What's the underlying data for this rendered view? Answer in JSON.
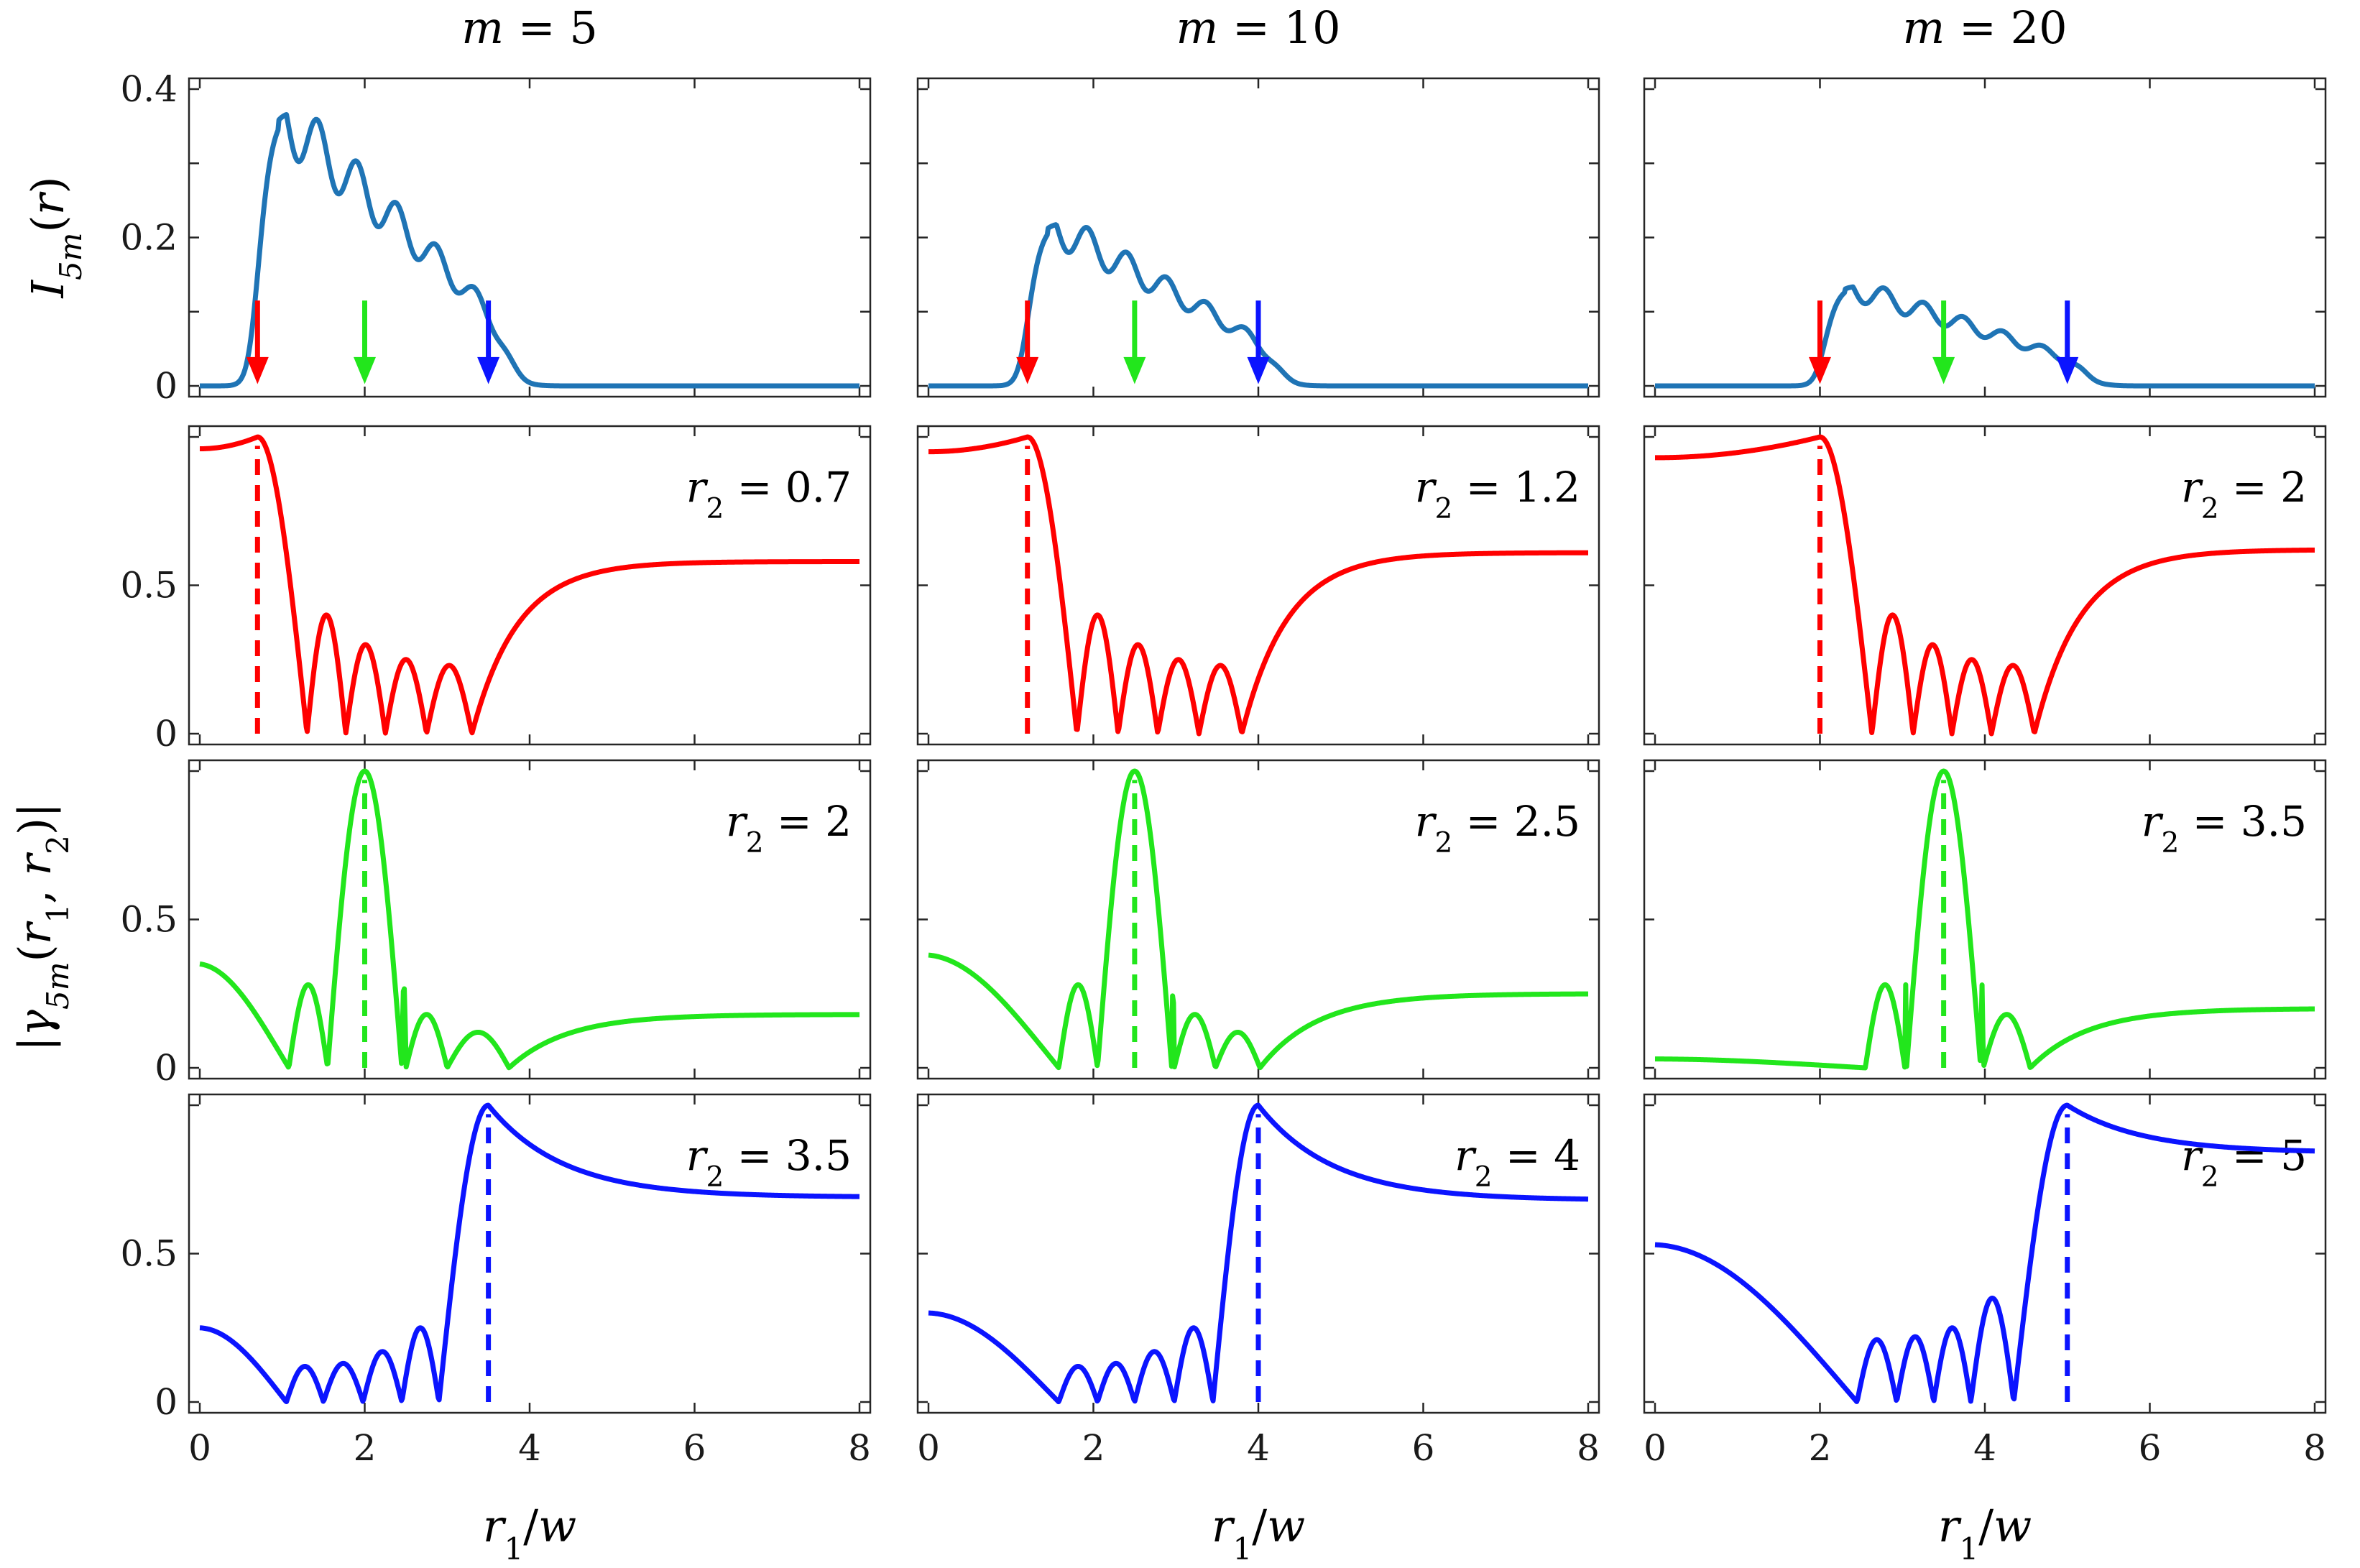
{
  "chart_data": {
    "type": "line",
    "layout": "4 rows x 3 columns",
    "xlabel": "r1/w",
    "xlim": [
      0,
      8
    ],
    "xticks": [
      "0",
      "2",
      "4",
      "6",
      "8"
    ],
    "colors": {
      "intensity": "#1f74b5",
      "red": "#ff0000",
      "green": "#22e61c",
      "blue": "#0b14ff"
    },
    "columns": [
      {
        "title": "m = 5",
        "m": 5,
        "intensity_peak": {
          "x": 0.95,
          "y": 0.37
        },
        "arrows": [
          0.7,
          2.0,
          3.5
        ],
        "rows": [
          {
            "r2": 0.7,
            "label": "r2 = 0.7",
            "left_value": 0.96,
            "right_value": 0.58,
            "zeros": [
              1.3,
              1.77,
              2.25,
              2.75,
              3.3
            ]
          },
          {
            "r2": 2.0,
            "label": "r2 = 2",
            "left_value": 0.35,
            "right_value": 0.18,
            "zeros": [
              1.08,
              1.55,
              2.5,
              3.0,
              3.75
            ]
          },
          {
            "r2": 3.5,
            "label": "r2 = 3.5",
            "left_value": 0.25,
            "right_value": 0.69,
            "zeros": [
              1.05,
              1.5,
              1.98,
              2.45,
              2.9
            ]
          }
        ]
      },
      {
        "title": "m = 10",
        "m": 10,
        "intensity_peak": {
          "x": 1.45,
          "y": 0.22
        },
        "arrows": [
          1.2,
          2.5,
          4.0
        ],
        "rows": [
          {
            "r2": 1.2,
            "label": "r2 = 1.2",
            "left_value": 0.95,
            "right_value": 0.61,
            "zeros": [
              1.8,
              2.3,
              2.78,
              3.28,
              3.8
            ]
          },
          {
            "r2": 2.5,
            "label": "r2 = 2.5",
            "left_value": 0.38,
            "right_value": 0.25,
            "zeros": [
              1.58,
              2.05,
              2.98,
              3.48,
              4.02
            ]
          },
          {
            "r2": 4.0,
            "label": "r2 = 4",
            "left_value": 0.3,
            "right_value": 0.68,
            "zeros": [
              1.58,
              2.05,
              2.5,
              2.98,
              3.45
            ]
          }
        ]
      },
      {
        "title": "m = 20",
        "m": 20,
        "intensity_peak": {
          "x": 2.3,
          "y": 0.135
        },
        "arrows": [
          2.0,
          3.5,
          5.0
        ],
        "rows": [
          {
            "r2": 2.0,
            "label": "r2 = 2",
            "left_value": 0.93,
            "right_value": 0.62,
            "zeros": [
              2.63,
              3.13,
              3.6,
              4.08,
              4.6
            ]
          },
          {
            "r2": 3.5,
            "label": "r2 = 3.5",
            "left_value": 0.03,
            "right_value": 0.2,
            "zeros": [
              2.55,
              3.03,
              3.98,
              4.55
            ]
          },
          {
            "r2": 5.0,
            "label": "r2 = 5",
            "left_value": 0.53,
            "right_value": 0.84,
            "zeros": [
              2.45,
              2.93,
              3.38,
              3.83,
              4.35
            ]
          }
        ]
      }
    ],
    "rows": [
      {
        "ylabel": "I_5m(r)",
        "ylim": [
          0,
          0.4
        ],
        "yticks": [
          "0",
          "0.2",
          "0.4"
        ]
      },
      {
        "ylim": [
          0,
          1
        ],
        "yticks": [
          "0",
          "0.5"
        ]
      },
      {
        "ylabel": "|γ_5m(r1, r2)|",
        "ylim": [
          0,
          1
        ],
        "yticks": [
          "0",
          "0.5"
        ]
      },
      {
        "ylim": [
          0,
          1
        ],
        "yticks": [
          "0",
          "0.5"
        ]
      }
    ]
  }
}
